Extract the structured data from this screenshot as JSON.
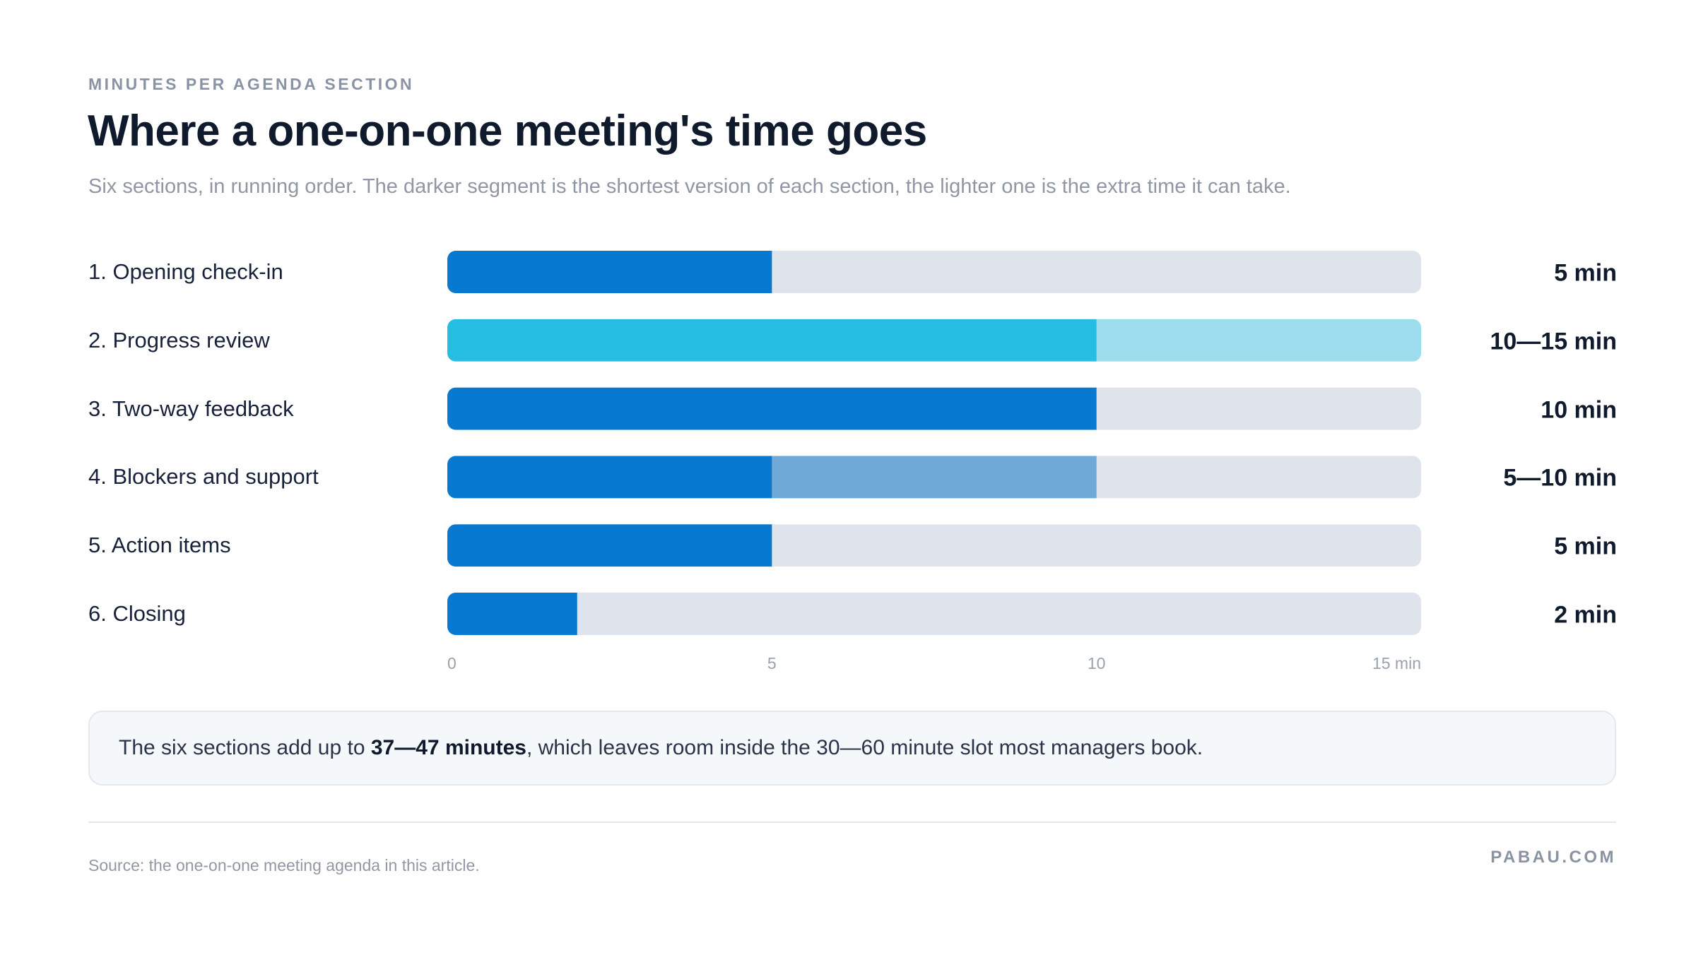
{
  "header": {
    "eyebrow": "MINUTES PER AGENDA SECTION",
    "title": "Where a one-on-one meeting's time goes",
    "subtitle": "Six sections, in running order. The darker segment is the shortest version of each section, the lighter one is the extra time it can take."
  },
  "chart_data": {
    "type": "bar",
    "orientation": "horizontal",
    "stacked": true,
    "categories": [
      "1. Opening check-in",
      "2. Progress review",
      "3. Two-way feedback",
      "4. Blockers and support",
      "5. Action items",
      "6. Closing"
    ],
    "min_minutes": [
      5,
      10,
      10,
      5,
      5,
      2
    ],
    "extra_minutes": [
      0,
      5,
      0,
      5,
      0,
      0
    ],
    "value_labels": [
      "5 min",
      "10—15 min",
      "10 min",
      "5—10 min",
      "5 min",
      "2 min"
    ],
    "xlim": [
      0,
      15
    ],
    "x_ticks": [
      "0",
      "5",
      "10",
      "15 min"
    ],
    "highlight_index": 1,
    "colors": {
      "base": "#0779d0",
      "base_extra": "#6fa9d8",
      "highlight": "#26bde3",
      "highlight_extra": "#9cdcec",
      "track": "#dfe3ec"
    }
  },
  "note": {
    "prefix": "The six sections add up to ",
    "emphasis": "37—47 minutes",
    "suffix": ", which leaves room inside the 30—60 minute slot most managers book."
  },
  "footer": {
    "source": "Source: the one-on-one meeting agenda in this article.",
    "brand": "PABAU.COM"
  }
}
